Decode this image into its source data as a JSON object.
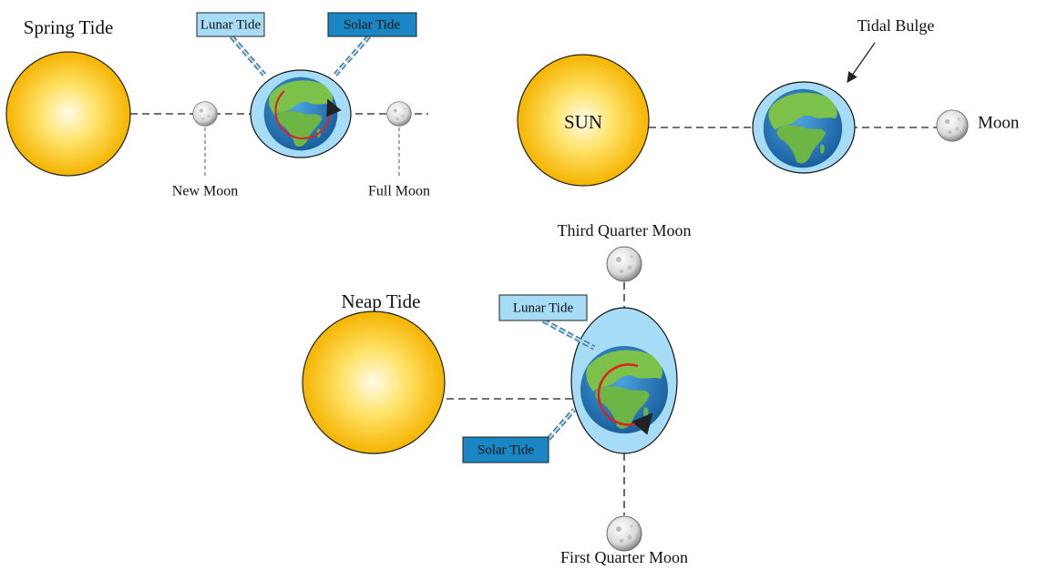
{
  "spring_tide": {
    "title": "Spring Tide",
    "lunar_tide": "Lunar Tide",
    "solar_tide": "Solar Tide",
    "new_moon": "New Moon",
    "full_moon": "Full Moon"
  },
  "tidal_bulge": {
    "sun": "SUN",
    "label": "Tidal Bulge",
    "moon": "Moon"
  },
  "neap_tide": {
    "title": "Neap Tide",
    "third_quarter": "Third Quarter Moon",
    "first_quarter": "First Quarter Moon",
    "lunar_tide": "Lunar Tide",
    "solar_tide": "Solar Tide"
  }
}
